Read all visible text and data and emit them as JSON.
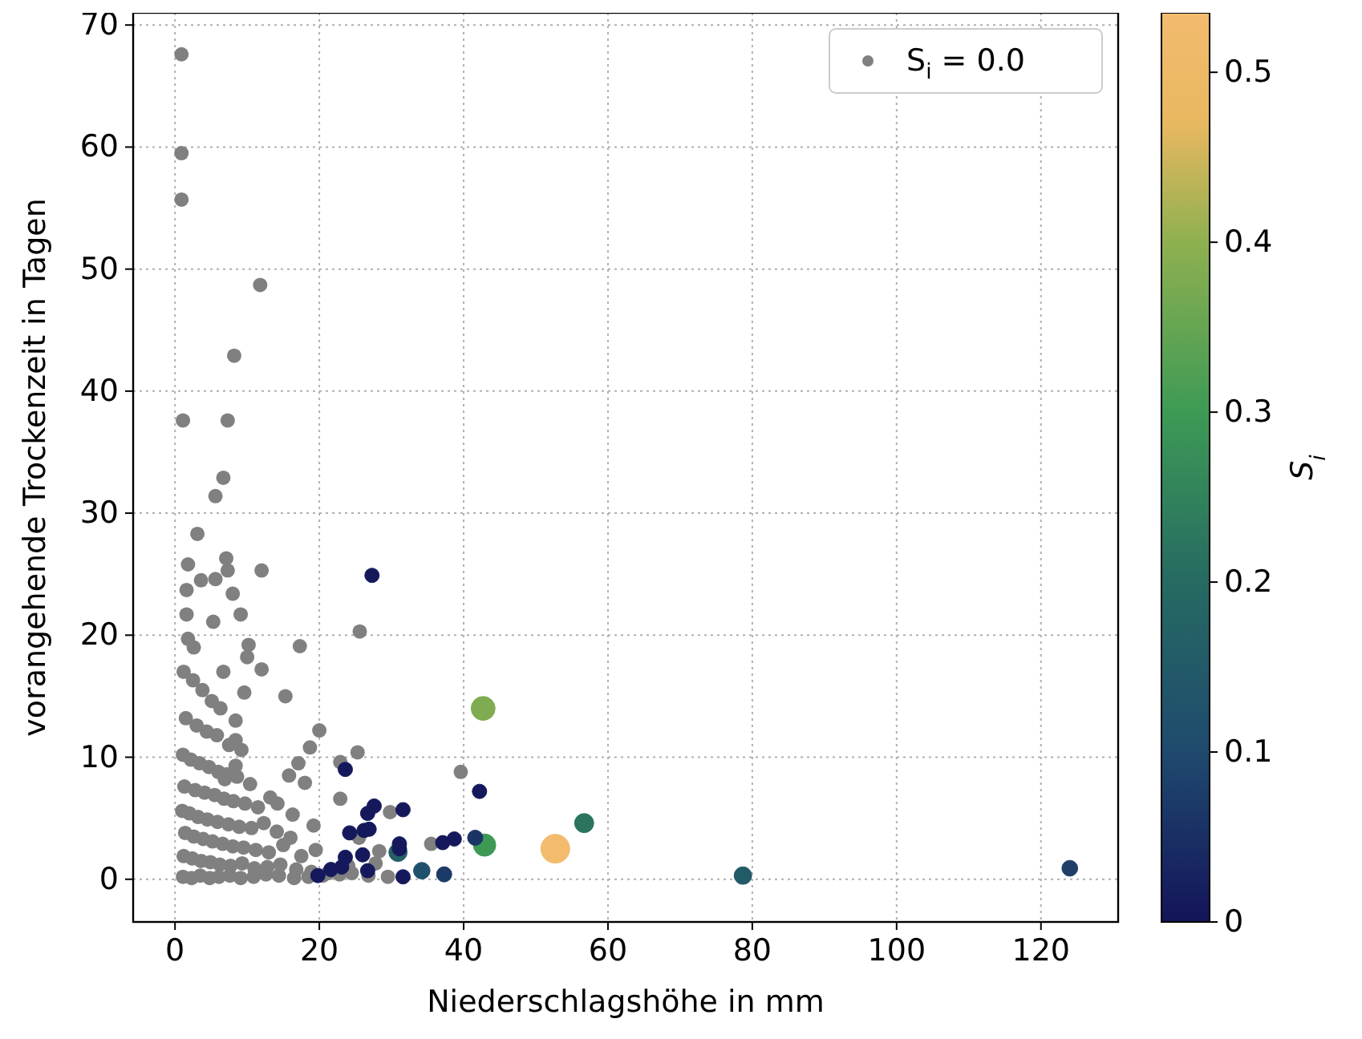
{
  "chart_data": {
    "type": "scatter",
    "xlabel": "Niederschlagshöhe in mm",
    "ylabel": "vorangehende Trockenzeit in Tagen",
    "clabel": "S$_{i}$",
    "xlim": [
      -5.8,
      130.7
    ],
    "ylim": [
      -3.5,
      71
    ],
    "xticks": [
      0,
      20,
      40,
      60,
      80,
      100,
      120
    ],
    "yticks": [
      0,
      10,
      20,
      30,
      40,
      50,
      60,
      70
    ],
    "clim": [
      0,
      0.535
    ],
    "cticks": [
      0,
      0.1,
      0.2,
      0.3,
      0.4,
      0.5
    ],
    "grid": true,
    "legend": "top right",
    "marker": "circle",
    "series": [
      {
        "name": "S$_{i}$ = 0.0",
        "color": "#808080",
        "x": [
          0.9,
          0.9,
          0.9,
          11.8,
          8.2,
          1.1,
          7.3,
          6.7,
          5.6,
          3.1,
          1.8,
          7.1,
          12,
          1.6,
          3.6,
          5.6,
          7.3,
          8,
          1.6,
          5.3,
          9.1,
          1.8,
          2.6,
          10.2,
          17.3,
          6.7,
          10,
          12,
          9.6,
          15.3,
          25.6,
          25.3,
          20,
          18.7,
          17.1,
          8.4,
          8.4,
          8.4,
          6.9,
          1.2,
          2.5,
          3.8,
          5.1,
          6.3,
          1.5,
          3,
          4.4,
          5.8,
          7.5,
          9.2,
          1.1,
          2.2,
          3.4,
          4.7,
          6,
          7.2,
          8.6,
          10.4,
          1.3,
          2.8,
          4.1,
          5.5,
          6.8,
          8.1,
          9.7,
          11.5,
          13.2,
          1,
          2,
          3.2,
          4.5,
          5.9,
          7.4,
          8.9,
          10.6,
          12.3,
          14.1,
          16,
          1.4,
          2.6,
          3.9,
          5.2,
          6.6,
          8,
          9.5,
          11.2,
          13,
          15,
          17.5,
          19.5,
          1.2,
          2.4,
          3.6,
          4.9,
          6.2,
          7.7,
          9.3,
          11,
          12.8,
          14.6,
          16.8,
          18.9,
          21.2,
          1.1,
          2.3,
          3.5,
          4.8,
          6.1,
          7.6,
          9.1,
          10.9,
          12.6,
          14.4,
          16.5,
          18.5,
          20.5,
          22.8,
          24.5,
          26.8,
          29.5,
          15.8,
          18,
          14.2,
          16.3,
          19.2,
          22.9,
          22.9,
          29.8,
          27.8,
          39.6,
          25.5,
          28.3,
          24,
          35.5
        ],
        "values": [
          67.6,
          59.5,
          55.7,
          48.7,
          42.9,
          37.6,
          37.6,
          32.9,
          31.4,
          28.3,
          25.8,
          26.3,
          25.3,
          23.7,
          24.5,
          24.6,
          25.3,
          23.4,
          21.7,
          21.1,
          21.7,
          19.7,
          19,
          19.2,
          19.1,
          17,
          18.2,
          17.2,
          15.3,
          15,
          20.3,
          10.4,
          12.2,
          10.8,
          9.5,
          13,
          11.4,
          9.3,
          8.2,
          17,
          16.3,
          15.5,
          14.6,
          14,
          13.2,
          12.6,
          12.1,
          11.8,
          11,
          10.6,
          10.2,
          9.8,
          9.5,
          9.2,
          8.8,
          8.6,
          8.4,
          7.8,
          7.6,
          7.3,
          7.1,
          6.9,
          6.6,
          6.4,
          6.2,
          5.9,
          6.7,
          5.6,
          5.4,
          5.1,
          4.9,
          4.7,
          4.5,
          4.3,
          4.2,
          4.6,
          3.9,
          3.4,
          3.8,
          3.5,
          3.3,
          3.1,
          2.9,
          2.7,
          2.6,
          2.4,
          2.2,
          2.8,
          1.9,
          2.4,
          1.9,
          1.7,
          1.5,
          1.4,
          1.2,
          1.1,
          1.3,
          0.9,
          1,
          1.2,
          0.8,
          0.6,
          0.5,
          0.2,
          0.1,
          0.3,
          0.1,
          0.2,
          0.3,
          0.1,
          0.2,
          0.4,
          0.3,
          0.1,
          0.2,
          0.3,
          0.4,
          0.5,
          0.3,
          0.2,
          8.5,
          7.9,
          6.2,
          5.3,
          4.4,
          9.6,
          6.6,
          5.5,
          1.3,
          8.8,
          3.4,
          2.3,
          1.1,
          2.9
        ]
      },
      {
        "type": "bubble",
        "x": [
          27.3,
          23.6,
          42.2,
          42.7,
          42.9,
          41.6,
          52.7,
          56.7,
          78.7,
          124,
          34.2,
          37.3,
          30.9,
          31.1,
          31.6,
          27.6,
          26.7,
          26.9,
          26.2,
          24.2,
          23.6,
          26,
          23.1,
          21.6,
          19.8,
          26.7,
          31.6,
          31.1,
          37.1,
          38.7
        ],
        "values": [
          24.9,
          9,
          7.2,
          14,
          2.8,
          3.4,
          2.5,
          4.6,
          0.3,
          0.9,
          0.7,
          0.4,
          2.2,
          2.5,
          5.7,
          6,
          5.4,
          4.1,
          4,
          3.8,
          1.8,
          2,
          1,
          0.8,
          0.3,
          0.7,
          0.2,
          2.9,
          3,
          3.3
        ],
        "cvalues": [
          0.01,
          0.01,
          0.01,
          0.38,
          0.3,
          0.06,
          0.53,
          0.22,
          0.15,
          0.08,
          0.12,
          0.07,
          0.17,
          0.01,
          0.01,
          0.01,
          0.01,
          0.01,
          0.01,
          0.01,
          0.01,
          0.01,
          0.01,
          0.01,
          0.01,
          0.01,
          0.01,
          0.01,
          0.01,
          0.01
        ],
        "sizes": [
          0.25,
          0.25,
          0.25,
          0.69,
          0.6,
          0.28,
          1,
          0.44,
          0.37,
          0.3,
          0.33,
          0.28,
          0.4,
          0.25,
          0.25,
          0.25,
          0.25,
          0.25,
          0.25,
          0.25,
          0.25,
          0.25,
          0.25,
          0.25,
          0.25,
          0.25,
          0.25,
          0.25,
          0.25,
          0.25
        ],
        "colors": [
          "#151a5c",
          "#151a5c",
          "#151a5c",
          "#7fac51",
          "#3d9a55",
          "#1b3466",
          "#f2bb6d",
          "#2b745f",
          "#235a68",
          "#1d3f6a",
          "#20506d",
          "#1c3a68",
          "#246066",
          "#151a5c",
          "#151a5c",
          "#151a5c",
          "#151a5c",
          "#151a5c",
          "#151a5c",
          "#151a5c",
          "#151a5c",
          "#151a5c",
          "#151a5c",
          "#151a5c",
          "#151a5c",
          "#151a5c",
          "#151a5c",
          "#151a5c",
          "#151a5c",
          "#151a5c"
        ]
      }
    ]
  }
}
